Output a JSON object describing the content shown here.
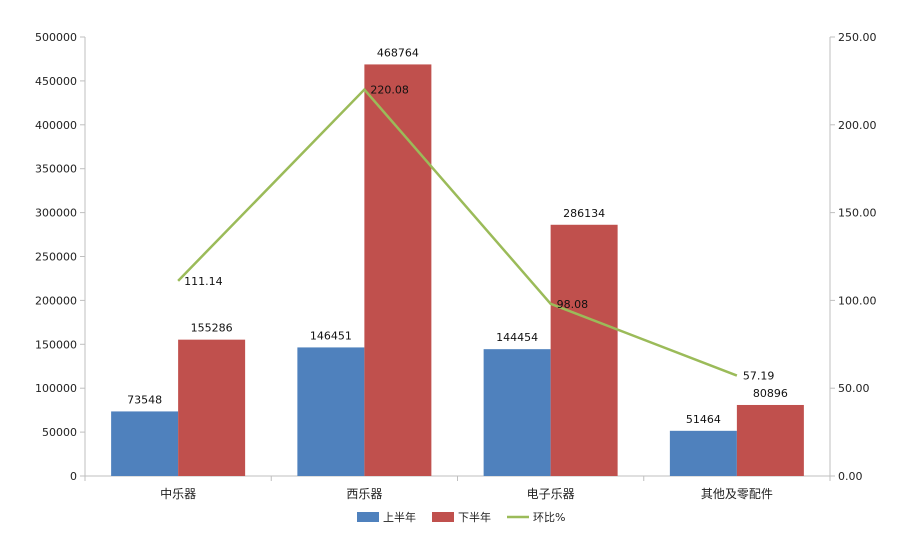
{
  "chart_data": {
    "type": "bar",
    "categories": [
      "中乐器",
      "西乐器",
      "电子乐器",
      "其他及零配件"
    ],
    "series": [
      {
        "name": "上半年",
        "kind": "bar",
        "axis": "left",
        "color": "#4f81bd",
        "values": [
          73548,
          146451,
          144454,
          51464
        ]
      },
      {
        "name": "下半年",
        "kind": "bar",
        "axis": "left",
        "color": "#c0504d",
        "values": [
          155286,
          468764,
          286134,
          80896
        ]
      },
      {
        "name": "环比%",
        "kind": "line",
        "axis": "right",
        "color": "#9bbb59",
        "values": [
          111.14,
          220.08,
          98.08,
          57.19
        ]
      }
    ],
    "y_left": {
      "min": 0,
      "max": 500000,
      "step": 50000,
      "ticks": [
        "0",
        "50000",
        "100000",
        "150000",
        "200000",
        "250000",
        "300000",
        "350000",
        "400000",
        "450000",
        "500000"
      ]
    },
    "y_right": {
      "min": 0,
      "max": 250,
      "step": 50,
      "ticks": [
        "0.00",
        "50.00",
        "100.00",
        "150.00",
        "200.00",
        "250.00"
      ]
    },
    "bar_labels": [
      [
        "73548",
        "146451",
        "144454",
        "51464"
      ],
      [
        "155286",
        "468764",
        "286134",
        "80896"
      ]
    ],
    "line_labels": [
      "111.14",
      "220.08",
      "98.08",
      "57.19"
    ],
    "legend": {
      "position": "bottom",
      "items": [
        "上半年",
        "下半年",
        "环比%"
      ]
    },
    "grid": false
  }
}
